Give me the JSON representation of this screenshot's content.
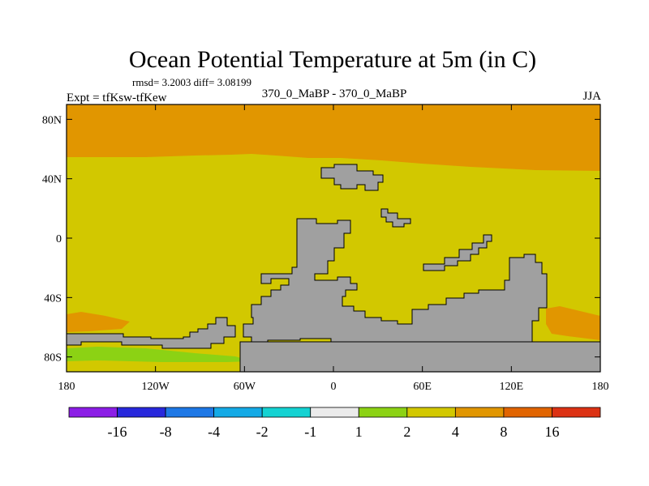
{
  "title": "Ocean Potential Temperature at 5m (in C)",
  "stats": "rmsd= 3.2003  diff= 3.08199",
  "left_label": "Expt = tfKsw-tfKew",
  "center_label": "370_0_MaBP - 370_0_MaBP",
  "right_label": "JJA",
  "lat_ticks": [
    {
      "label": "80N",
      "lat": 80
    },
    {
      "label": "40N",
      "lat": 40
    },
    {
      "label": "0",
      "lat": 0
    },
    {
      "label": "40S",
      "lat": -40
    },
    {
      "label": "80S",
      "lat": -80
    }
  ],
  "lon_ticks": [
    {
      "label": "180",
      "lon": -180
    },
    {
      "label": "120W",
      "lon": -120
    },
    {
      "label": "60W",
      "lon": -60
    },
    {
      "label": "0",
      "lon": 0
    },
    {
      "label": "60E",
      "lon": 60
    },
    {
      "label": "120E",
      "lon": 120
    },
    {
      "label": "180",
      "lon": 180
    }
  ],
  "colorbar": {
    "colors": [
      "#8c1ee6",
      "#2828dc",
      "#1e78e6",
      "#14aae6",
      "#14d2d2",
      "#ebebeb",
      "#8cd214",
      "#d2c800",
      "#e19600",
      "#e16400",
      "#dc3214"
    ],
    "labels": [
      "-16",
      "-8",
      "-4",
      "-2",
      "-1",
      "1",
      "2",
      "4",
      "8",
      "16"
    ]
  },
  "colors": {
    "band_4_8": "#e19600",
    "band_2_4": "#d2c800",
    "band_1_2": "#8cd214",
    "band_neg1_1": "#ebebeb",
    "land": "#a0a0a0"
  }
}
